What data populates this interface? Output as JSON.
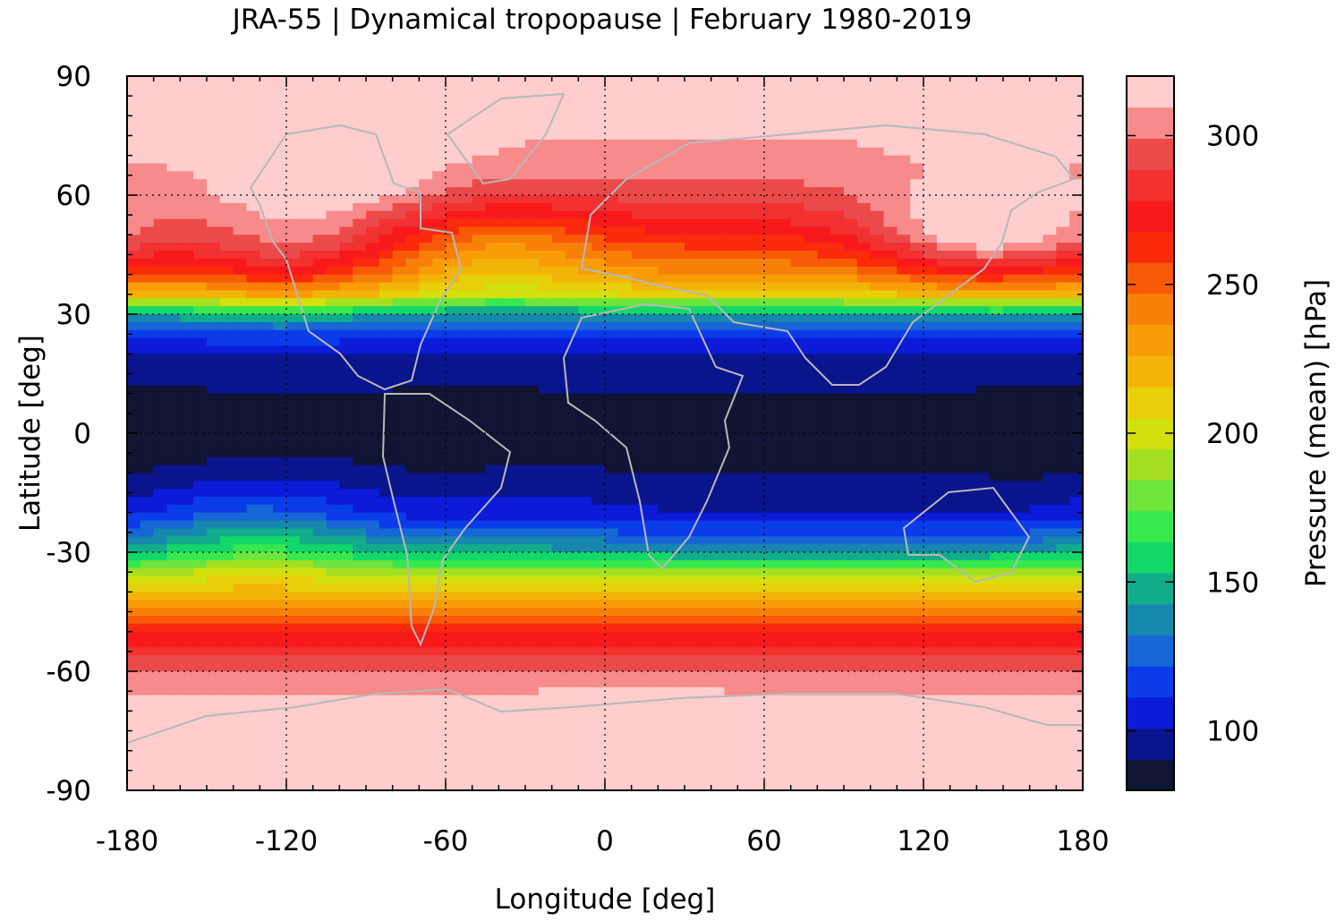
{
  "title": "JRA-55 | Dynamical tropopause | February 1980-2019",
  "xlabel": "Longitude [deg]",
  "ylabel": "Latitude [deg]",
  "colorbar": {
    "label": "Pressure (mean) [hPa]",
    "range": [
      80,
      320
    ],
    "step": 10,
    "ticks": [
      100,
      150,
      200,
      250,
      300
    ],
    "colors": [
      "#0f1533",
      "#0a148c",
      "#0b1bd8",
      "#0a3ce9",
      "#1766d6",
      "#1688ae",
      "#11ad8a",
      "#12d86a",
      "#37e84e",
      "#6ee43c",
      "#a4e020",
      "#d4e00b",
      "#e8cf08",
      "#f2b408",
      "#f89c08",
      "#f88008",
      "#f85a08",
      "#fb2a0b",
      "#f7191b",
      "#f23131",
      "#ec4a4a",
      "#f78a8a",
      "#fecdcd"
    ]
  },
  "chart_data": {
    "type": "heatmap",
    "title": "JRA-55 | Dynamical tropopause | February 1980-2019",
    "xlabel": "Longitude [deg]",
    "ylabel": "Latitude [deg]",
    "xlim": [
      -180,
      180
    ],
    "ylim": [
      -90,
      90
    ],
    "xticks": [
      -180,
      -120,
      -60,
      0,
      60,
      120,
      180
    ],
    "yticks": [
      -90,
      -60,
      -30,
      0,
      30,
      60,
      90
    ],
    "grid": true,
    "z_units": "hPa",
    "zonal_mean_profile": {
      "lat": [
        -90,
        -80,
        -70,
        -60,
        -55,
        -50,
        -45,
        -40,
        -35,
        -30,
        -25,
        -20,
        -10,
        0,
        10,
        20,
        25,
        30,
        35,
        40,
        45,
        50,
        60,
        70,
        80,
        90
      ],
      "value": [
        318,
        312,
        305,
        292,
        272,
        258,
        232,
        208,
        180,
        142,
        118,
        100,
        90,
        86,
        90,
        100,
        115,
        142,
        205,
        232,
        248,
        262,
        285,
        298,
        303,
        304
      ]
    },
    "features": [
      {
        "lon": 175,
        "lat": 0,
        "value": 82
      },
      {
        "lon": -55,
        "lat": 0,
        "value": 83
      },
      {
        "lon": 35,
        "lat": 0,
        "value": 84
      },
      {
        "lon": -105,
        "lat": 65,
        "value": 315
      },
      {
        "lon": 145,
        "lat": 50,
        "value": 312
      },
      {
        "lon": 55,
        "lat": 40,
        "value": 228
      },
      {
        "lon": -40,
        "lat": 45,
        "value": 222
      },
      {
        "lon": -120,
        "lat": 45,
        "value": 280
      },
      {
        "lon": 10,
        "lat": -75,
        "value": 314
      },
      {
        "lon": 160,
        "lat": -85,
        "value": 320
      },
      {
        "lon": -170,
        "lat": -85,
        "value": 320
      },
      {
        "lon": -130,
        "lat": -25,
        "value": 145
      },
      {
        "lon": -30,
        "lat": -20,
        "value": 105
      }
    ]
  }
}
